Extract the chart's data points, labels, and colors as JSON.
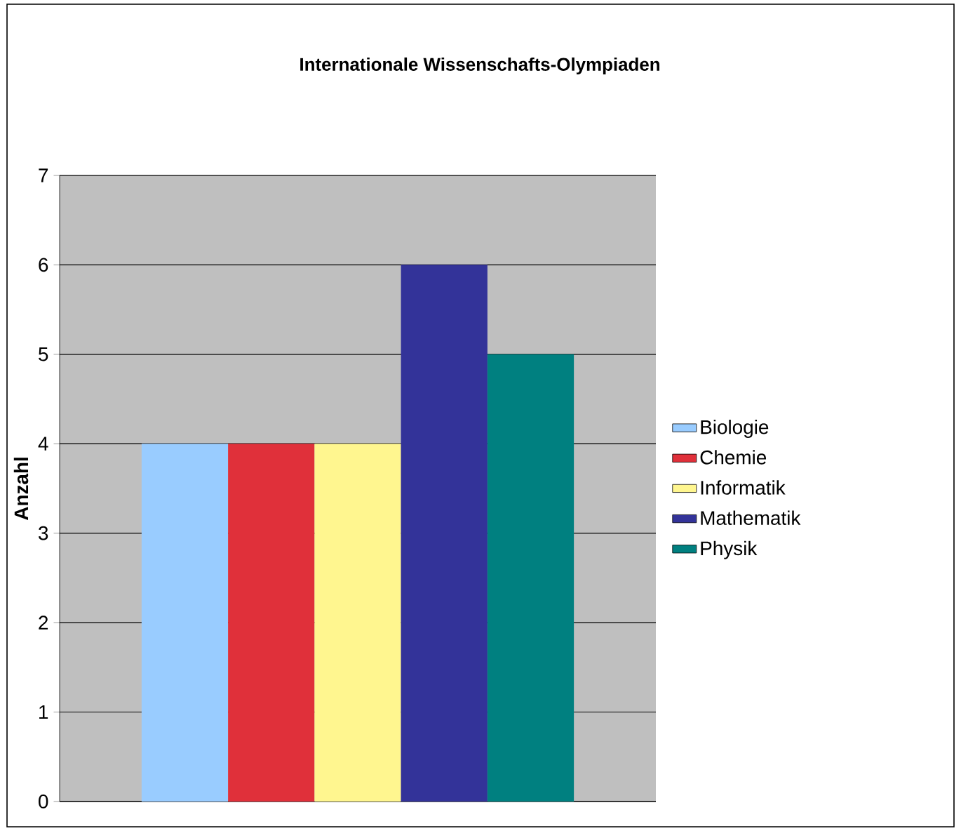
{
  "chart_data": {
    "type": "bar",
    "title": "Internationale Wissenschafts-Olympiaden",
    "ylabel": "Anzahl",
    "categories": [
      null
    ],
    "series": [
      {
        "name": "Biologie",
        "color": "#99ccff",
        "values": [
          4
        ]
      },
      {
        "name": "Chemie",
        "color": "#e0303a",
        "values": [
          4
        ]
      },
      {
        "name": "Informatik",
        "color": "#fff68f",
        "values": [
          4
        ]
      },
      {
        "name": "Mathematik",
        "color": "#333399",
        "values": [
          6
        ]
      },
      {
        "name": "Physik",
        "color": "#008080",
        "values": [
          5
        ]
      }
    ],
    "ylim": [
      0,
      7
    ],
    "yticks": [
      0,
      1,
      2,
      3,
      4,
      5,
      6,
      7
    ],
    "grid": "y",
    "legend": "right",
    "tick_labels": "y"
  }
}
